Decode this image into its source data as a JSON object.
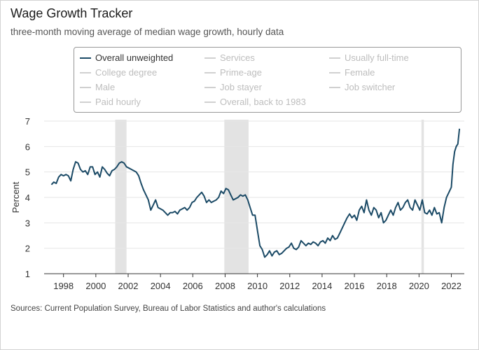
{
  "chart_data": {
    "type": "line",
    "title": "Wage Growth Tracker",
    "subtitle": "three-month moving average of median wage growth, hourly data",
    "source": "Sources: Current Population Survey, Bureau of Labor Statistics and author's calculations",
    "ylabel": "Percent",
    "xlabel": "",
    "xlim": [
      1996.8,
      2022.8
    ],
    "ylim": [
      1,
      7
    ],
    "yticks": [
      1,
      2,
      3,
      4,
      5,
      6,
      7
    ],
    "xticks": [
      1998,
      2000,
      2002,
      2004,
      2006,
      2008,
      2010,
      2012,
      2014,
      2016,
      2018,
      2020,
      2022
    ],
    "recessions": [
      [
        2001.2,
        2001.9
      ],
      [
        2007.95,
        2009.45
      ],
      [
        2020.15,
        2020.3
      ]
    ],
    "line_color": "#1b4a66",
    "legend": [
      {
        "label": "Overall unweighted",
        "active": true
      },
      {
        "label": "Services",
        "active": false
      },
      {
        "label": "Usually full-time",
        "active": false
      },
      {
        "label": "College degree",
        "active": false
      },
      {
        "label": "Prime-age",
        "active": false
      },
      {
        "label": "Female",
        "active": false
      },
      {
        "label": "Male",
        "active": false
      },
      {
        "label": "Job stayer",
        "active": false
      },
      {
        "label": "Job switcher",
        "active": false
      },
      {
        "label": "Paid hourly",
        "active": false
      },
      {
        "label": "Overall, back to 1983",
        "active": false
      }
    ],
    "series": [
      {
        "name": "Overall unweighted",
        "points": [
          [
            1997.25,
            4.5
          ],
          [
            1997.4,
            4.6
          ],
          [
            1997.55,
            4.55
          ],
          [
            1997.7,
            4.8
          ],
          [
            1997.85,
            4.9
          ],
          [
            1998.0,
            4.85
          ],
          [
            1998.15,
            4.9
          ],
          [
            1998.3,
            4.85
          ],
          [
            1998.45,
            4.65
          ],
          [
            1998.6,
            5.1
          ],
          [
            1998.75,
            5.4
          ],
          [
            1998.9,
            5.35
          ],
          [
            1999.05,
            5.1
          ],
          [
            1999.2,
            5.0
          ],
          [
            1999.35,
            5.05
          ],
          [
            1999.5,
            4.9
          ],
          [
            1999.65,
            5.2
          ],
          [
            1999.8,
            5.2
          ],
          [
            1999.95,
            4.9
          ],
          [
            2000.1,
            5.0
          ],
          [
            2000.25,
            4.8
          ],
          [
            2000.4,
            5.2
          ],
          [
            2000.55,
            5.1
          ],
          [
            2000.7,
            4.95
          ],
          [
            2000.85,
            4.85
          ],
          [
            2001.0,
            5.05
          ],
          [
            2001.15,
            5.1
          ],
          [
            2001.3,
            5.2
          ],
          [
            2001.45,
            5.35
          ],
          [
            2001.6,
            5.4
          ],
          [
            2001.75,
            5.35
          ],
          [
            2001.9,
            5.2
          ],
          [
            2002.05,
            5.15
          ],
          [
            2002.2,
            5.1
          ],
          [
            2002.35,
            5.05
          ],
          [
            2002.5,
            5.0
          ],
          [
            2002.65,
            4.85
          ],
          [
            2002.8,
            4.55
          ],
          [
            2002.95,
            4.3
          ],
          [
            2003.1,
            4.1
          ],
          [
            2003.25,
            3.9
          ],
          [
            2003.4,
            3.5
          ],
          [
            2003.55,
            3.7
          ],
          [
            2003.7,
            3.9
          ],
          [
            2003.85,
            3.6
          ],
          [
            2004.0,
            3.55
          ],
          [
            2004.15,
            3.5
          ],
          [
            2004.3,
            3.4
          ],
          [
            2004.45,
            3.3
          ],
          [
            2004.6,
            3.4
          ],
          [
            2004.75,
            3.4
          ],
          [
            2004.9,
            3.45
          ],
          [
            2005.05,
            3.35
          ],
          [
            2005.2,
            3.5
          ],
          [
            2005.35,
            3.55
          ],
          [
            2005.5,
            3.6
          ],
          [
            2005.65,
            3.5
          ],
          [
            2005.8,
            3.6
          ],
          [
            2005.95,
            3.8
          ],
          [
            2006.1,
            3.85
          ],
          [
            2006.25,
            4.0
          ],
          [
            2006.4,
            4.1
          ],
          [
            2006.55,
            4.2
          ],
          [
            2006.7,
            4.05
          ],
          [
            2006.85,
            3.8
          ],
          [
            2007.0,
            3.9
          ],
          [
            2007.15,
            3.8
          ],
          [
            2007.3,
            3.85
          ],
          [
            2007.45,
            3.9
          ],
          [
            2007.6,
            4.0
          ],
          [
            2007.75,
            4.25
          ],
          [
            2007.9,
            4.15
          ],
          [
            2008.05,
            4.35
          ],
          [
            2008.2,
            4.3
          ],
          [
            2008.35,
            4.1
          ],
          [
            2008.5,
            3.9
          ],
          [
            2008.65,
            3.95
          ],
          [
            2008.8,
            4.0
          ],
          [
            2008.95,
            4.1
          ],
          [
            2009.1,
            4.05
          ],
          [
            2009.25,
            4.1
          ],
          [
            2009.4,
            3.9
          ],
          [
            2009.55,
            3.6
          ],
          [
            2009.7,
            3.3
          ],
          [
            2009.85,
            3.3
          ],
          [
            2010.0,
            2.7
          ],
          [
            2010.15,
            2.1
          ],
          [
            2010.3,
            1.95
          ],
          [
            2010.45,
            1.65
          ],
          [
            2010.6,
            1.75
          ],
          [
            2010.75,
            1.9
          ],
          [
            2010.9,
            1.7
          ],
          [
            2011.05,
            1.85
          ],
          [
            2011.2,
            1.9
          ],
          [
            2011.35,
            1.75
          ],
          [
            2011.5,
            1.8
          ],
          [
            2011.65,
            1.9
          ],
          [
            2011.8,
            2.0
          ],
          [
            2011.95,
            2.05
          ],
          [
            2012.1,
            2.2
          ],
          [
            2012.25,
            2.0
          ],
          [
            2012.4,
            1.95
          ],
          [
            2012.55,
            2.05
          ],
          [
            2012.7,
            2.3
          ],
          [
            2012.85,
            2.2
          ],
          [
            2013.0,
            2.1
          ],
          [
            2013.15,
            2.2
          ],
          [
            2013.3,
            2.15
          ],
          [
            2013.45,
            2.25
          ],
          [
            2013.6,
            2.2
          ],
          [
            2013.75,
            2.1
          ],
          [
            2013.9,
            2.25
          ],
          [
            2014.05,
            2.3
          ],
          [
            2014.2,
            2.2
          ],
          [
            2014.35,
            2.4
          ],
          [
            2014.5,
            2.3
          ],
          [
            2014.65,
            2.5
          ],
          [
            2014.8,
            2.35
          ],
          [
            2014.95,
            2.4
          ],
          [
            2015.1,
            2.6
          ],
          [
            2015.25,
            2.8
          ],
          [
            2015.4,
            3.0
          ],
          [
            2015.55,
            3.2
          ],
          [
            2015.7,
            3.35
          ],
          [
            2015.85,
            3.2
          ],
          [
            2016.0,
            3.3
          ],
          [
            2016.15,
            3.1
          ],
          [
            2016.3,
            3.5
          ],
          [
            2016.45,
            3.65
          ],
          [
            2016.6,
            3.4
          ],
          [
            2016.75,
            3.9
          ],
          [
            2016.9,
            3.5
          ],
          [
            2017.05,
            3.3
          ],
          [
            2017.2,
            3.6
          ],
          [
            2017.35,
            3.5
          ],
          [
            2017.5,
            3.2
          ],
          [
            2017.65,
            3.4
          ],
          [
            2017.8,
            3.0
          ],
          [
            2017.95,
            3.1
          ],
          [
            2018.1,
            3.3
          ],
          [
            2018.25,
            3.5
          ],
          [
            2018.4,
            3.3
          ],
          [
            2018.55,
            3.6
          ],
          [
            2018.7,
            3.8
          ],
          [
            2018.85,
            3.5
          ],
          [
            2019.0,
            3.6
          ],
          [
            2019.15,
            3.8
          ],
          [
            2019.3,
            3.9
          ],
          [
            2019.45,
            3.6
          ],
          [
            2019.6,
            3.5
          ],
          [
            2019.75,
            3.9
          ],
          [
            2019.9,
            3.7
          ],
          [
            2020.05,
            3.5
          ],
          [
            2020.2,
            3.9
          ],
          [
            2020.35,
            3.4
          ],
          [
            2020.5,
            3.35
          ],
          [
            2020.65,
            3.5
          ],
          [
            2020.8,
            3.3
          ],
          [
            2020.95,
            3.6
          ],
          [
            2021.1,
            3.35
          ],
          [
            2021.25,
            3.4
          ],
          [
            2021.4,
            3.0
          ],
          [
            2021.55,
            3.6
          ],
          [
            2021.7,
            4.0
          ],
          [
            2021.85,
            4.2
          ],
          [
            2022.0,
            4.4
          ],
          [
            2022.1,
            5.3
          ],
          [
            2022.2,
            5.8
          ],
          [
            2022.3,
            6.0
          ],
          [
            2022.4,
            6.1
          ],
          [
            2022.5,
            6.7
          ]
        ]
      }
    ]
  }
}
